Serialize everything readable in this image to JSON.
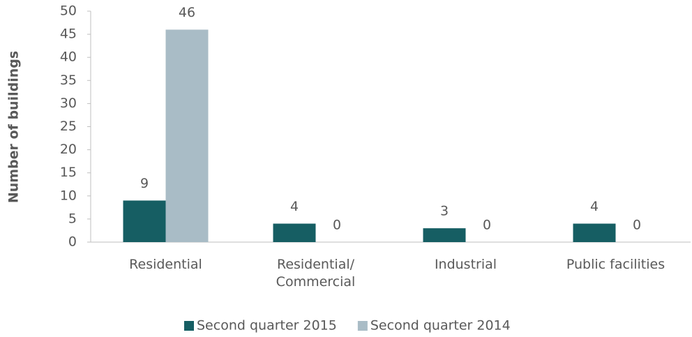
{
  "chart_data": {
    "type": "bar",
    "y_label": "Number of buildings",
    "categories": [
      "Residential",
      "Residential/ Commercial",
      "Industrial",
      "Public facilities"
    ],
    "series": [
      {
        "name": "Second quarter 2015",
        "color": "#165e63",
        "values": [
          9,
          4,
          3,
          4
        ]
      },
      {
        "name": "Second quarter 2014",
        "color": "#a9bcc6",
        "values": [
          46,
          0,
          0,
          0
        ]
      }
    ],
    "ylim": [
      0,
      50
    ],
    "yticks": [
      0,
      5,
      10,
      15,
      20,
      25,
      30,
      35,
      40,
      45,
      50
    ],
    "legend": "bottom"
  }
}
